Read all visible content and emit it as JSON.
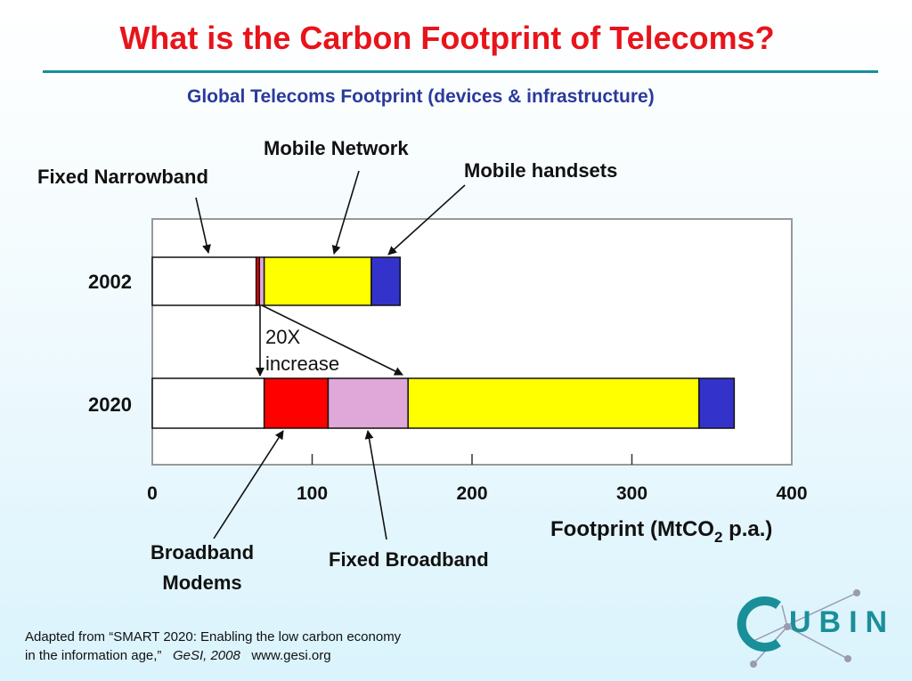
{
  "slide": {
    "title": "What is the Carbon Footprint of Telecoms?",
    "subtitle": "Global Telecoms Footprint (devices & infrastructure)"
  },
  "chart_data": {
    "type": "bar",
    "orientation": "horizontal",
    "stacked": true,
    "categories": [
      "2002",
      "2020"
    ],
    "series": [
      {
        "name": "Fixed Narrowband",
        "values": [
          65,
          70
        ],
        "color": "#ffffff"
      },
      {
        "name": "Broadband Modems",
        "values": [
          2,
          40
        ],
        "color": "#ff0000"
      },
      {
        "name": "Fixed Broadband",
        "values": [
          3,
          50
        ],
        "color": "#e0a8d8"
      },
      {
        "name": "Mobile Network",
        "values": [
          67,
          182
        ],
        "color": "#ffff00"
      },
      {
        "name": "Mobile handsets",
        "values": [
          18,
          22
        ],
        "color": "#3333cc"
      }
    ],
    "xlim": [
      0,
      400
    ],
    "xticks": [
      "0",
      "100",
      "200",
      "300",
      "400"
    ],
    "xlabel_prefix": "Footprint (MtCO",
    "xlabel_sub": "2",
    "xlabel_suffix": " p.a.)",
    "annotation_line1": "20X",
    "annotation_line2": "increase",
    "grid": false,
    "legend": "callouts"
  },
  "callouts": {
    "fixed_narrowband": "Fixed Narrowband",
    "mobile_network": "Mobile Network",
    "mobile_handsets": "Mobile handsets",
    "broadband_modems_line1": "Broadband",
    "broadband_modems_line2": "Modems",
    "fixed_broadband": "Fixed Broadband"
  },
  "source": {
    "line1": "Adapted from “SMART 2020: Enabling the low carbon economy",
    "line2_plain": "in the information age,”",
    "line2_italic": "GeSI, 2008",
    "line2_url": "www.gesi.org"
  },
  "logo": {
    "text": "UBIN",
    "colors": {
      "ring": "#1a8f9a",
      "text": "#1a8f9a",
      "nodes": "#9a9ab0"
    }
  }
}
